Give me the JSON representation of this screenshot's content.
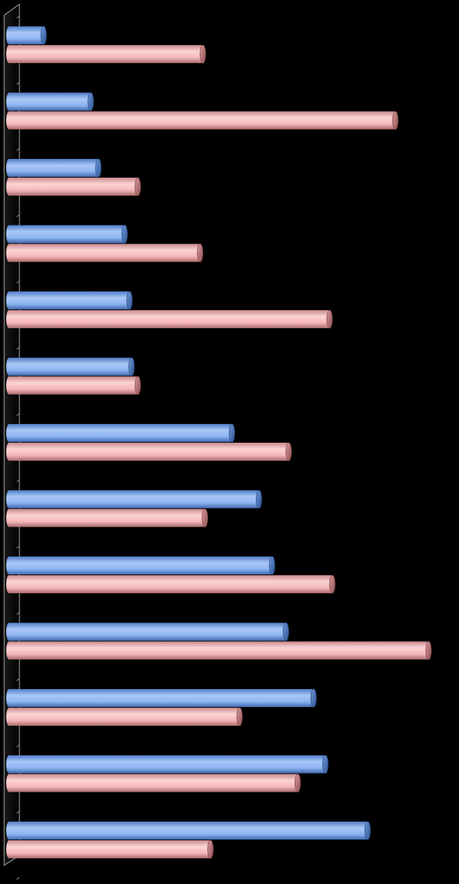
{
  "chart_data": {
    "type": "bar",
    "orientation": "horizontal",
    "style": "3d-cylinder",
    "background": "#000000",
    "title": "",
    "xlabel": "",
    "ylabel": "",
    "grid": false,
    "legend": "none",
    "xlim": [
      0,
      625
    ],
    "categories": [
      "",
      "",
      "",
      "",
      "",
      "",
      "",
      "",
      "",
      "",
      "",
      "",
      ""
    ],
    "series": [
      {
        "color": "#8DB4F2",
        "values": [
          50,
          118,
          129,
          167,
          174,
          177,
          322,
          361,
          380,
          400,
          440,
          457,
          518
        ]
      },
      {
        "color": "#F5B7B9",
        "values": [
          280,
          558,
          186,
          276,
          463,
          186,
          404,
          283,
          467,
          606,
          333,
          417,
          291
        ]
      }
    ]
  }
}
